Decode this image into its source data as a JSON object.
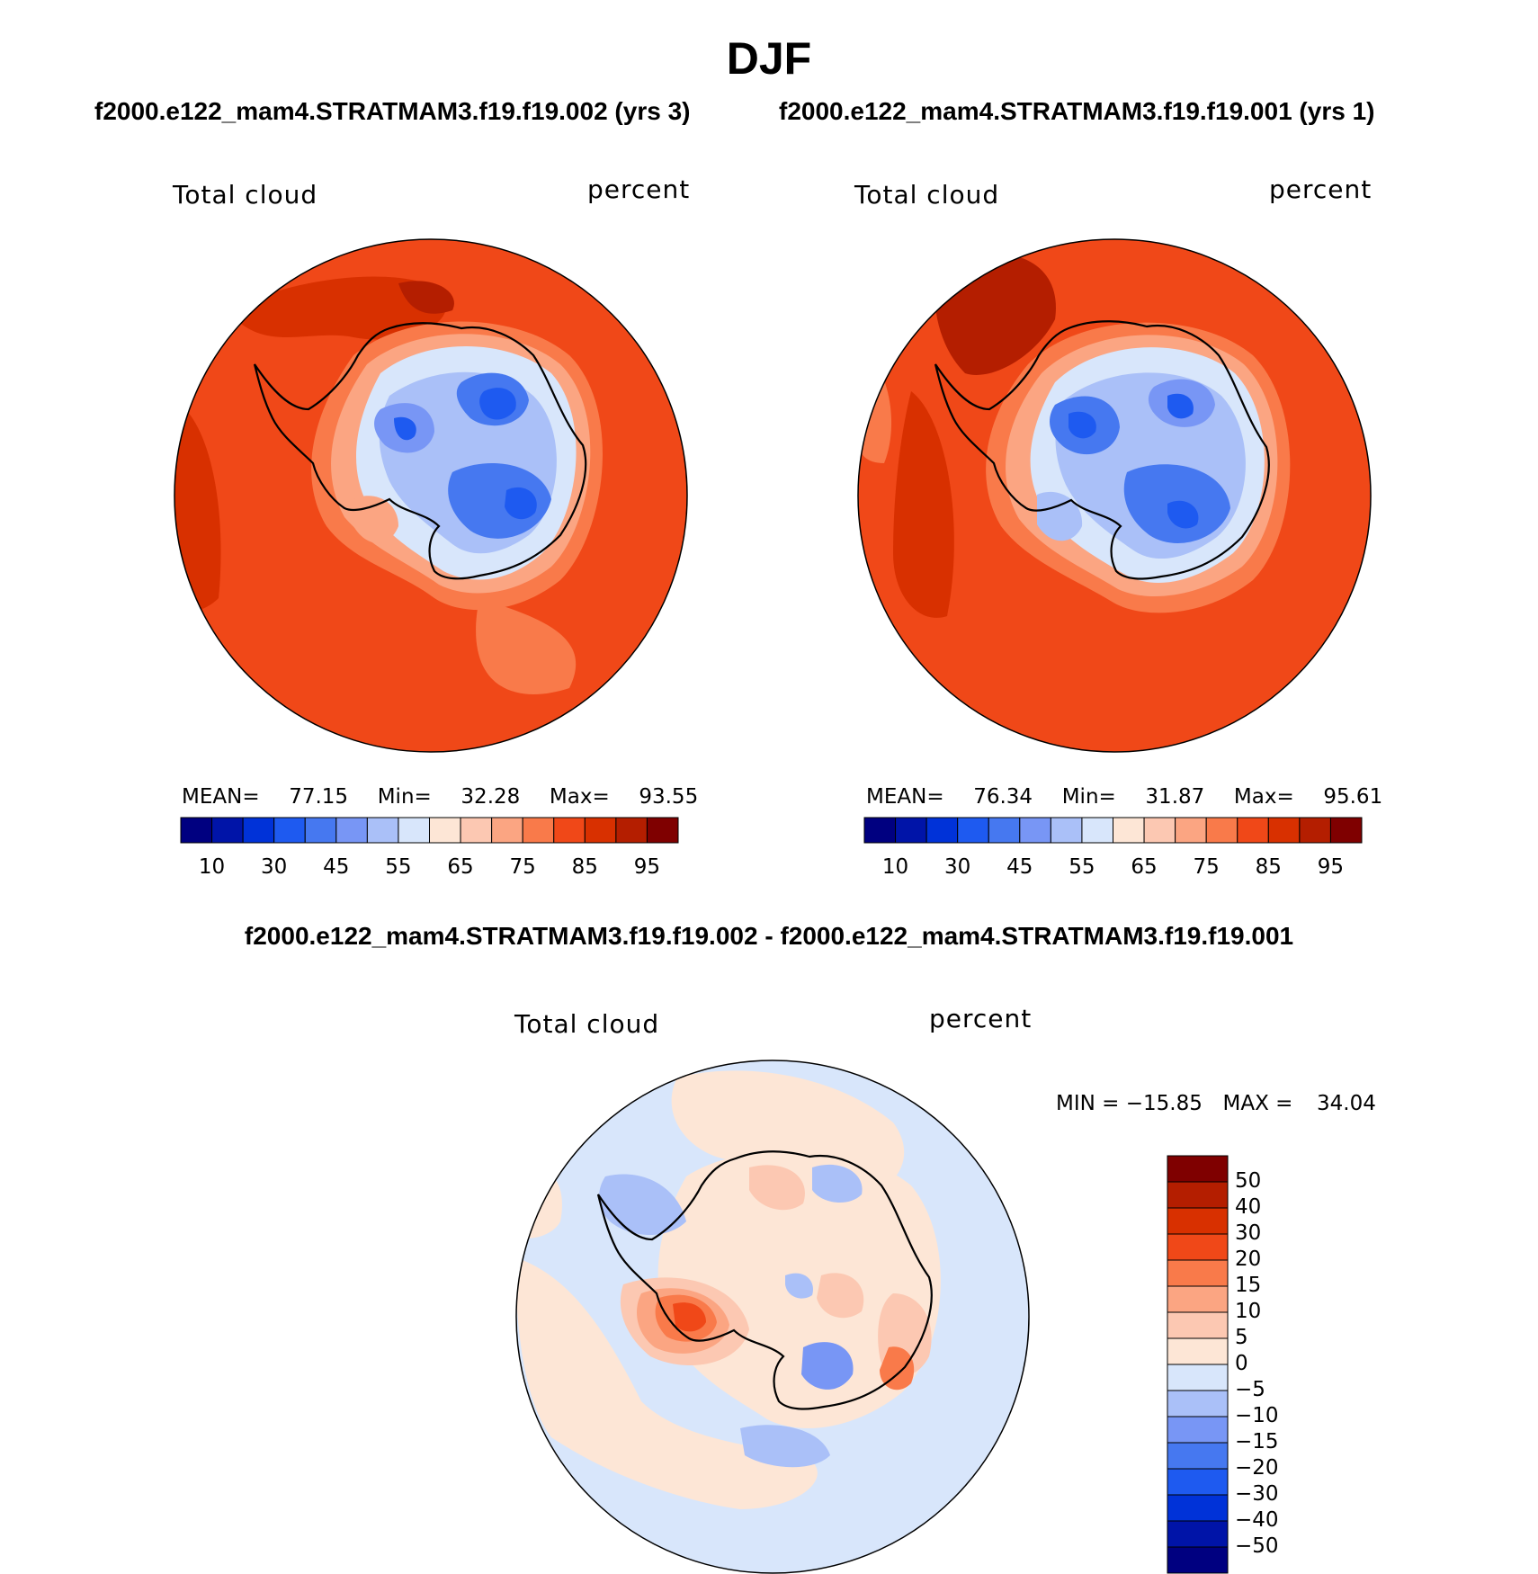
{
  "page": {
    "title": "DJF"
  },
  "panels": {
    "left": {
      "case": "f2000.e122_mam4.STRATMAM3.f19.f19.002 (yrs 3)",
      "variable": "Total cloud",
      "units": "percent",
      "stats": {
        "mean_label": "MEAN=",
        "mean": "77.15",
        "min_label": "Min=",
        "min": "32.28",
        "max_label": "Max=",
        "max": "93.55"
      }
    },
    "right": {
      "case": "f2000.e122_mam4.STRATMAM3.f19.f19.001 (yrs 1)",
      "variable": "Total cloud",
      "units": "percent",
      "stats": {
        "mean_label": "MEAN=",
        "mean": "76.34",
        "min_label": "Min=",
        "min": "31.87",
        "max_label": "Max=",
        "max": "95.61"
      }
    },
    "diff": {
      "title": "f2000.e122_mam4.STRATMAM3.f19.f19.002 - f2000.e122_mam4.STRATMAM3.f19.f19.001",
      "variable": "Total cloud",
      "units": "percent",
      "stats": {
        "min_label": "MIN =",
        "min": "−15.85",
        "max_label": "MAX =",
        "max": "34.04"
      }
    }
  },
  "colorbars": {
    "absolute": {
      "colors": [
        "#000080",
        "#0014a8",
        "#0032d8",
        "#1e5af0",
        "#4678f0",
        "#7896f5",
        "#aac0f8",
        "#d8e6fb",
        "#fde6d6",
        "#fcc8b2",
        "#fba582",
        "#f97a4a",
        "#f04818",
        "#d83000",
        "#b41e00",
        "#7f0000"
      ],
      "tick_labels": [
        "10",
        "30",
        "45",
        "55",
        "65",
        "75",
        "85",
        "95"
      ]
    },
    "difference": {
      "colors": [
        "#7f0000",
        "#b41e00",
        "#d83000",
        "#f04818",
        "#f97a4a",
        "#fba582",
        "#fcc8b2",
        "#fde6d6",
        "#d8e6fb",
        "#aac0f8",
        "#7896f5",
        "#4678f0",
        "#1e5af0",
        "#0032d8",
        "#0014a8",
        "#000080"
      ],
      "tick_labels": [
        "50",
        "40",
        "30",
        "20",
        "15",
        "10",
        "5",
        "0",
        "−5",
        "−10",
        "−15",
        "−20",
        "−30",
        "−40",
        "−50"
      ]
    }
  },
  "map_colors": {
    "ocean_high": "#f04818",
    "ocean_higher": "#d83000",
    "ocean_peak": "#b41e00",
    "coast_ring": "#f97a4a",
    "coast_ring2": "#fba582",
    "coast_ring3": "#fcc8b2",
    "interior_light": "#d8e6fb",
    "interior_mid": "#aac0f8",
    "interior_blue": "#7896f5",
    "interior_deep": "#4678f0",
    "interior_core": "#1e5af0",
    "diff_background": "#d8e6fb",
    "diff_positive": "#fde6d6",
    "diff_pos2": "#fcc8b2",
    "diff_pos3": "#fba582",
    "diff_pos4": "#f97a4a",
    "diff_pos5": "#f04818",
    "diff_neg2": "#aac0f8",
    "diff_neg3": "#7896f5"
  }
}
